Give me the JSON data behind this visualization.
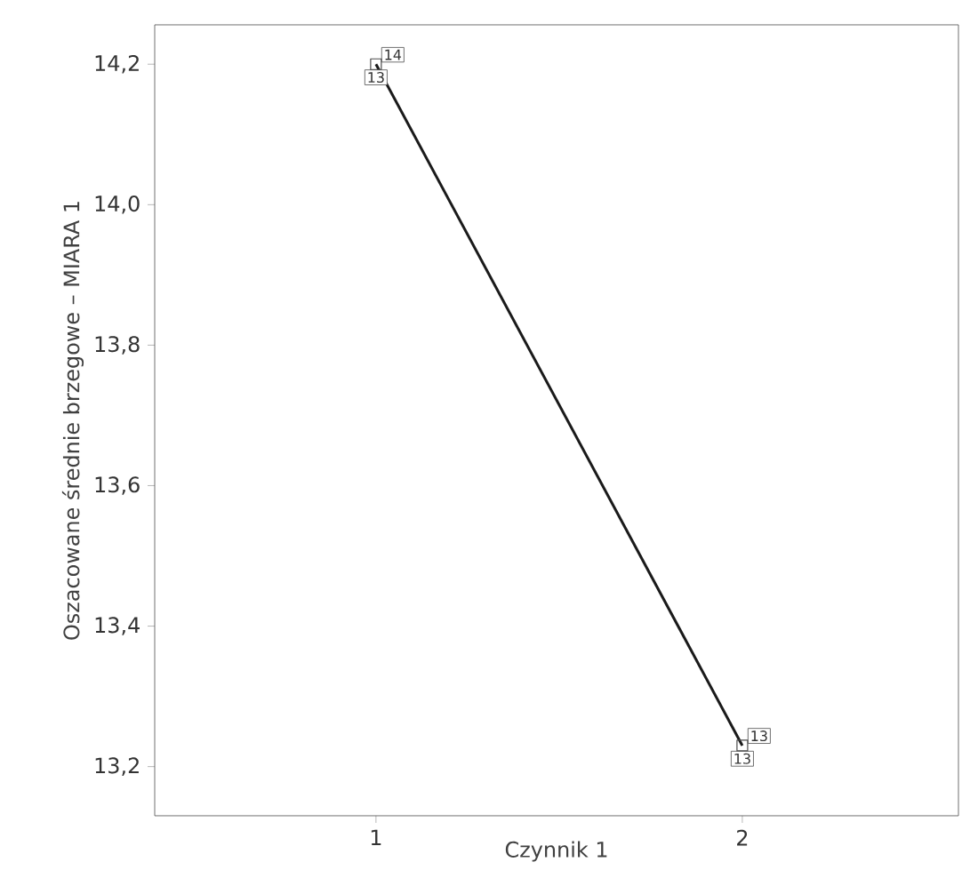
{
  "chart_data": {
    "type": "line",
    "xlabel": "Czynnik 1",
    "ylabel": "Oszacowane średnie brzegowe – MIARA 1",
    "categories": [
      "1",
      "2"
    ],
    "series": [
      {
        "color": "#1a1a1a",
        "values": [
          14.2,
          13.23
        ]
      }
    ],
    "ylim": [
      13.13,
      14.256
    ],
    "yticks": [
      {
        "value": 13.2,
        "label": "13,2"
      },
      {
        "value": 13.4,
        "label": "13,4"
      },
      {
        "value": 13.6,
        "label": "13,6"
      },
      {
        "value": 13.8,
        "label": "13,8"
      },
      {
        "value": 14.0,
        "label": "14,0"
      },
      {
        "value": 14.2,
        "label": "14,2"
      }
    ],
    "marker": "square",
    "annotations": [
      {
        "text": "13",
        "x": "1",
        "y": 14.2
      },
      {
        "text": "14",
        "x": "1",
        "y": 14.2
      },
      {
        "text": "13",
        "x": "2",
        "y": 13.23
      },
      {
        "text": "13",
        "x": "2",
        "y": 13.23
      }
    ]
  }
}
